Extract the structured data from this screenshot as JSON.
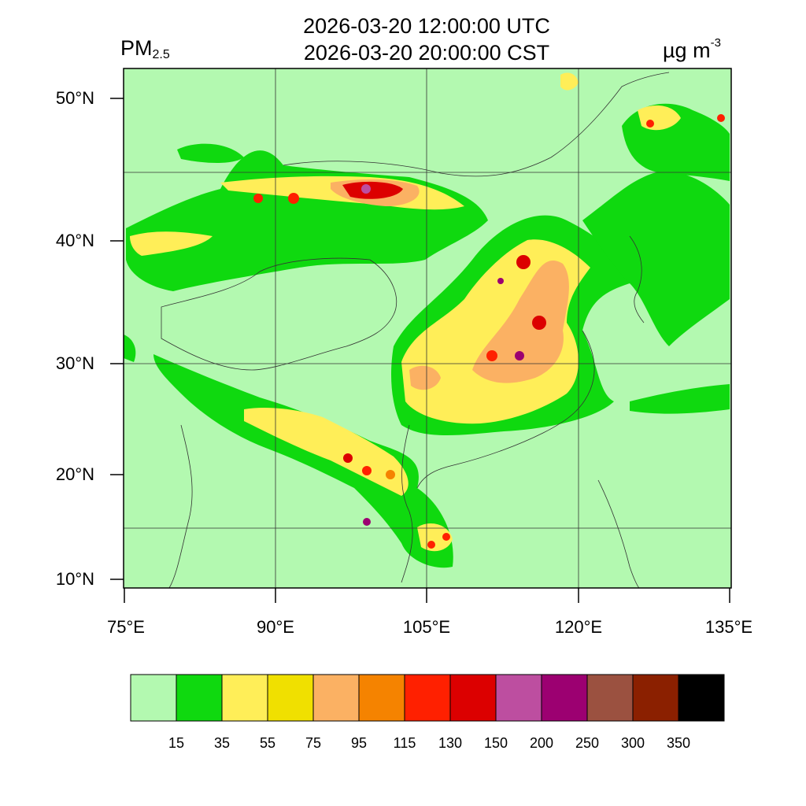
{
  "title": {
    "line1": "2026-03-20 12:00:00 UTC",
    "line2": "2026-03-20 20:00:00 CST"
  },
  "variable": {
    "name": "PM",
    "subscript": "2.5"
  },
  "units": {
    "base": "µg m",
    "exponent": "-3"
  },
  "axes": {
    "lat_ticks": [
      {
        "value": 50,
        "label": "50°N"
      },
      {
        "value": 40,
        "label": "40°N"
      },
      {
        "value": 30,
        "label": "30°N"
      },
      {
        "value": 20,
        "label": "20°N"
      },
      {
        "value": 10,
        "label": "10°N"
      }
    ],
    "lon_ticks": [
      {
        "value": 75,
        "label": "75°E"
      },
      {
        "value": 90,
        "label": "90°E"
      },
      {
        "value": 105,
        "label": "105°E"
      },
      {
        "value": 120,
        "label": "120°E"
      },
      {
        "value": 135,
        "label": "135°E"
      }
    ]
  },
  "colorbar": {
    "colors": [
      "#b3f9b0",
      "#0fd90f",
      "#ffee58",
      "#f0e000",
      "#fbb163",
      "#f58300",
      "#ff2000",
      "#dc0000",
      "#bd4ea0",
      "#9c0071",
      "#9b5140",
      "#8b2000",
      "#000000"
    ],
    "labels": [
      "15",
      "35",
      "55",
      "75",
      "95",
      "115",
      "130",
      "150",
      "200",
      "250",
      "300",
      "350"
    ]
  }
}
